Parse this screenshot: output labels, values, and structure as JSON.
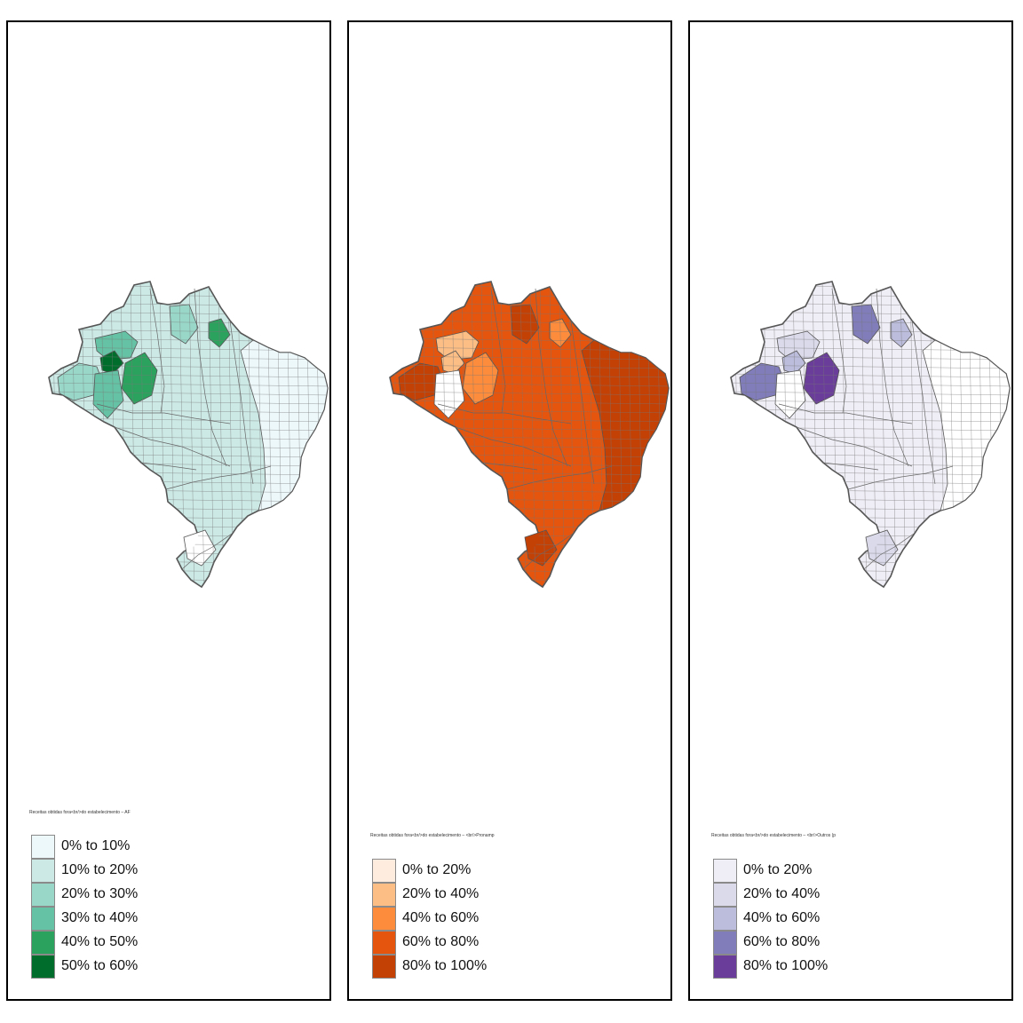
{
  "panels": [
    {
      "id": "af",
      "legend_title": "Receitas obtidas fora<br/>do estabelecimento – AF",
      "legend": [
        {
          "label": "0% to 10%",
          "color": "#edf8fb"
        },
        {
          "label": "10% to 20%",
          "color": "#cce9e5"
        },
        {
          "label": "20% to 30%",
          "color": "#99d8c9"
        },
        {
          "label": "30% to 40%",
          "color": "#66c2a4"
        },
        {
          "label": "40% to 50%",
          "color": "#2ca25f"
        },
        {
          "label": "50% to 60%",
          "color": "#006d2c"
        }
      ],
      "base_color": "#cce9e5",
      "east_color": "#edf8fb",
      "patches": [
        {
          "color": "#99d8c9"
        },
        {
          "color": "#66c2a4"
        },
        {
          "color": "#006d2c"
        },
        {
          "color": "#2ca25f"
        },
        {
          "color": "#99d8c9"
        },
        {
          "color": "#66c2a4"
        },
        {
          "color": "#2ca25f"
        },
        {
          "color": "#ffffff"
        }
      ]
    },
    {
      "id": "pronamp",
      "legend_title": "Receitas obtidas fora<br/>do estabelecimento – <br/>Pronamp",
      "legend": [
        {
          "label": "0% to 20%",
          "color": "#feedde"
        },
        {
          "label": "20% to 40%",
          "color": "#fdbe85"
        },
        {
          "label": "40% to 60%",
          "color": "#fd8d3c"
        },
        {
          "label": "60% to 80%",
          "color": "#e6550d"
        },
        {
          "label": "80% to 100%",
          "color": "#c44106"
        }
      ],
      "base_color": "#e6550d",
      "east_color": "#c44106",
      "patches": [
        {
          "color": "#c44106"
        },
        {
          "color": "#fdbe85"
        },
        {
          "color": "#fdbe85"
        },
        {
          "color": "#fd8d3c"
        },
        {
          "color": "#c44106"
        },
        {
          "color": "#ffffff"
        },
        {
          "color": "#fd8d3c"
        },
        {
          "color": "#c44106"
        }
      ]
    },
    {
      "id": "outros",
      "legend_title": "Receitas obtidas fora<br/>do estabelecimento – <br/>Outros (p",
      "legend": [
        {
          "label": "0% to 20%",
          "color": "#efedf5"
        },
        {
          "label": "20% to 40%",
          "color": "#dadaeb"
        },
        {
          "label": "40% to 60%",
          "color": "#bcbddc"
        },
        {
          "label": "60% to 80%",
          "color": "#807dba"
        },
        {
          "label": "80% to 100%",
          "color": "#6a3d9a"
        }
      ],
      "base_color": "#efedf5",
      "east_color": "#ffffff",
      "patches": [
        {
          "color": "#807dba"
        },
        {
          "color": "#dadaeb"
        },
        {
          "color": "#bcbddc"
        },
        {
          "color": "#6a3d9a"
        },
        {
          "color": "#807dba"
        },
        {
          "color": "#ffffff"
        },
        {
          "color": "#bcbddc"
        },
        {
          "color": "#dadaeb"
        }
      ]
    }
  ]
}
